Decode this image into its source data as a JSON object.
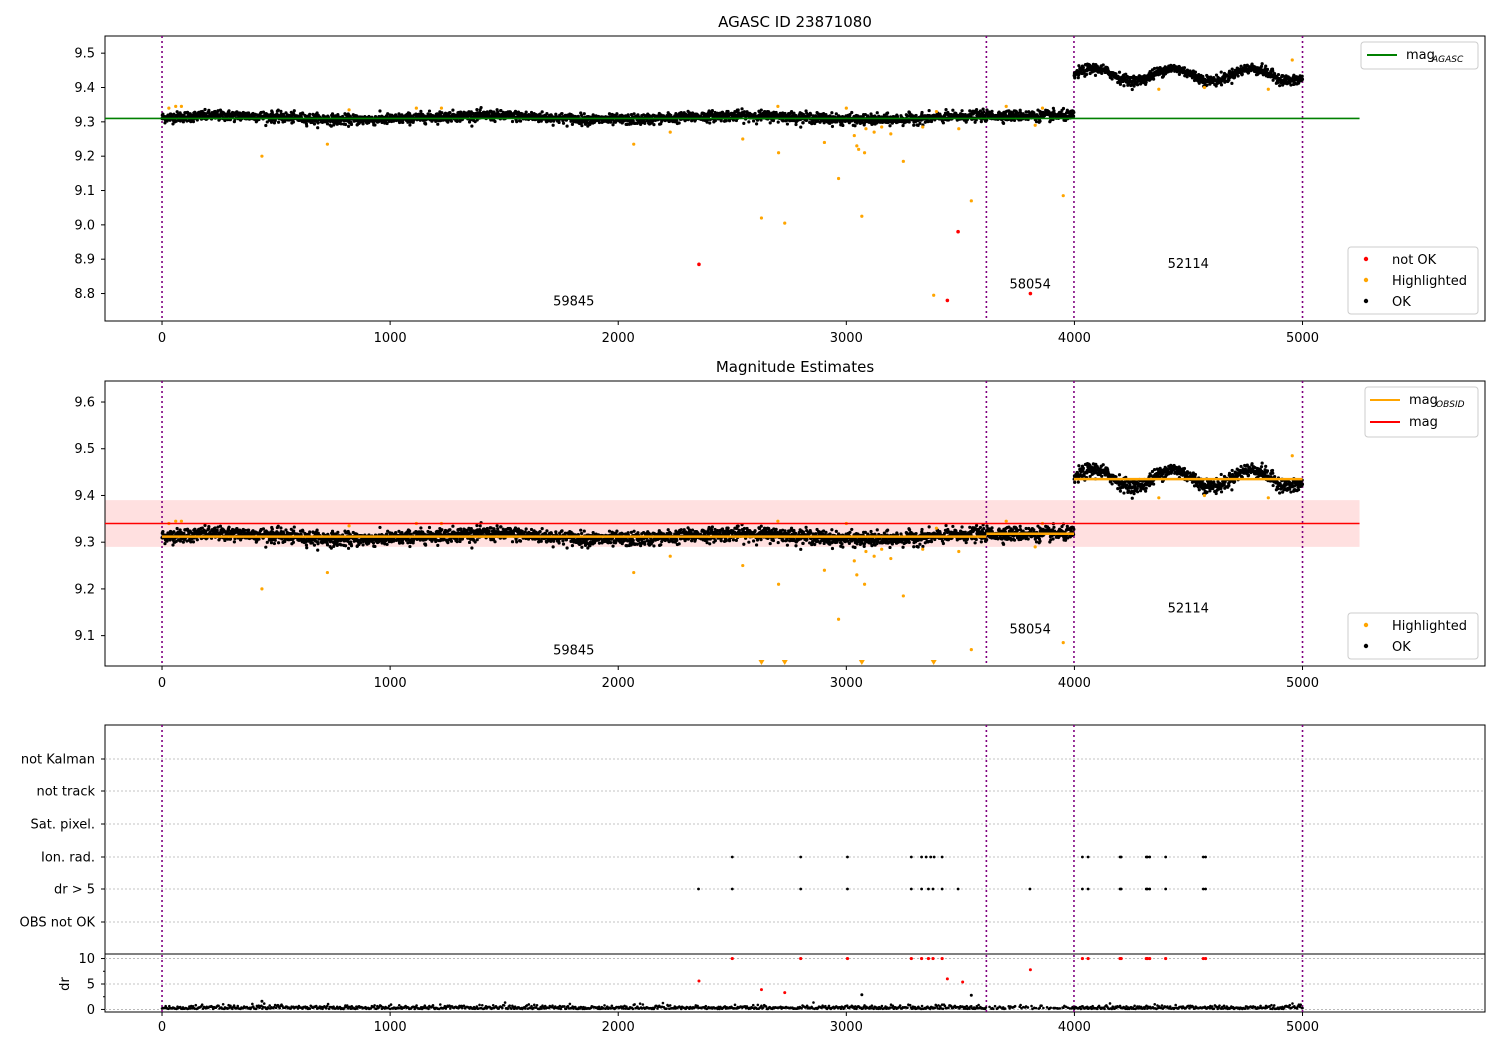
{
  "chart_data": [
    {
      "type": "scatter",
      "title": "AGASC ID 23871080",
      "xlim": [
        -250,
        5800
      ],
      "ylim": [
        8.72,
        9.55
      ],
      "xticks": [
        0,
        1000,
        2000,
        3000,
        4000,
        5000
      ],
      "yticks": [
        8.8,
        8.9,
        9.0,
        9.1,
        9.2,
        9.3,
        9.4,
        9.5
      ],
      "mag_agasc": 9.31,
      "obs_boundaries": [
        0,
        3614,
        3998,
        5000
      ],
      "obs_labels": [
        {
          "text": "59845",
          "x": 1805,
          "y": 8.765
        },
        {
          "text": "58054",
          "x": 3806,
          "y": 8.815
        },
        {
          "text": "52114",
          "x": 4499,
          "y": 8.875
        }
      ],
      "legend_position": "top-right",
      "legend_top": [
        {
          "label": "mag",
          "sub": "AGASC",
          "color": "#008000",
          "kind": "line"
        }
      ],
      "legend_bottom": [
        {
          "label": "not OK",
          "color": "#ff0000",
          "kind": "point"
        },
        {
          "label": "Highlighted",
          "color": "#ffa500",
          "kind": "point"
        },
        {
          "label": "OK",
          "color": "#000000",
          "kind": "point"
        }
      ],
      "highlighted": [
        [
          438,
          9.2
        ],
        [
          725,
          9.235
        ],
        [
          2068,
          9.235
        ],
        [
          2228,
          9.27
        ],
        [
          2546,
          9.25
        ],
        [
          2628,
          9.02
        ],
        [
          2703,
          9.21
        ],
        [
          2730,
          9.005
        ],
        [
          2904,
          9.24
        ],
        [
          2966,
          9.135
        ],
        [
          3035,
          9.26
        ],
        [
          3046,
          9.23
        ],
        [
          3054,
          9.22
        ],
        [
          3068,
          9.025
        ],
        [
          3080,
          9.21
        ],
        [
          3086,
          9.28
        ],
        [
          3122,
          9.27
        ],
        [
          3155,
          9.285
        ],
        [
          3195,
          9.265
        ],
        [
          3250,
          9.185
        ],
        [
          3335,
          9.285
        ],
        [
          3383,
          8.795
        ],
        [
          3493,
          9.28
        ],
        [
          3548,
          9.07
        ],
        [
          3951,
          9.085
        ],
        [
          3828,
          9.29
        ],
        [
          3701,
          9.345
        ]
      ],
      "not_ok": [
        [
          2354,
          8.885
        ],
        [
          3443,
          8.78
        ],
        [
          3490,
          8.98
        ],
        [
          3807,
          8.8
        ]
      ]
    },
    {
      "type": "scatter",
      "title": "Magnitude Estimates",
      "xlim": [
        -250,
        5800
      ],
      "ylim": [
        9.035,
        9.645
      ],
      "xticks": [
        0,
        1000,
        2000,
        3000,
        4000,
        5000
      ],
      "yticks": [
        9.1,
        9.2,
        9.3,
        9.4,
        9.5,
        9.6
      ],
      "mag": 9.34,
      "mag_band": [
        9.29,
        9.39
      ],
      "mag_obsid": [
        {
          "x0": 0,
          "x1": 3614,
          "y": 9.312
        },
        {
          "x0": 3614,
          "x1": 3998,
          "y": 9.318
        },
        {
          "x0": 3998,
          "x1": 5000,
          "y": 9.435
        }
      ],
      "obs_labels": [
        {
          "text": "59845",
          "x": 1805,
          "y": 9.06
        },
        {
          "text": "58054",
          "x": 3806,
          "y": 9.105
        },
        {
          "text": "52114",
          "x": 4499,
          "y": 9.15
        }
      ],
      "legend_position": "top-right",
      "legend_top": [
        {
          "label": "mag",
          "sub": "OBSID",
          "color": "#ffa500",
          "kind": "line"
        },
        {
          "label": "mag",
          "color": "#ff0000",
          "kind": "line"
        }
      ],
      "legend_bottom": [
        {
          "label": "Highlighted",
          "color": "#ffa500",
          "kind": "point"
        },
        {
          "label": "OK",
          "color": "#000000",
          "kind": "point"
        }
      ],
      "highlighted": [
        [
          438,
          9.2
        ],
        [
          725,
          9.235
        ],
        [
          2068,
          9.235
        ],
        [
          2228,
          9.27
        ],
        [
          2546,
          9.25
        ],
        [
          2703,
          9.21
        ],
        [
          2904,
          9.24
        ],
        [
          2966,
          9.135
        ],
        [
          3035,
          9.26
        ],
        [
          3046,
          9.23
        ],
        [
          3080,
          9.21
        ],
        [
          3086,
          9.28
        ],
        [
          3122,
          9.27
        ],
        [
          3155,
          9.285
        ],
        [
          3195,
          9.265
        ],
        [
          3250,
          9.185
        ],
        [
          3335,
          9.285
        ],
        [
          3493,
          9.28
        ],
        [
          3548,
          9.07
        ],
        [
          3951,
          9.085
        ],
        [
          3828,
          9.29
        ],
        [
          3701,
          9.345
        ]
      ],
      "below_range": [
        2628,
        2730,
        3068,
        3383
      ]
    },
    {
      "type": "scatter",
      "categories": [
        "not Kalman",
        "not track",
        "Sat. pixel.",
        "Ion. rad.",
        "dr > 5",
        "OBS not OK"
      ],
      "xlim": [
        -250,
        5800
      ],
      "xticks": [
        0,
        1000,
        2000,
        3000,
        4000,
        5000
      ],
      "flag_points": {
        "Ion. rad.": [
          2500,
          2800,
          3005,
          3285,
          3330,
          3350,
          3370,
          3385,
          3420,
          4035,
          4060,
          4200,
          4205,
          4315,
          4320,
          4330,
          4400,
          4565,
          4575
        ],
        "dr > 5": [
          2352,
          2500,
          2800,
          3005,
          3285,
          3330,
          3360,
          3380,
          3420,
          3490,
          3805,
          4035,
          4060,
          4200,
          4205,
          4315,
          4320,
          4330,
          4400,
          4565,
          4575
        ]
      },
      "dr_panel": {
        "ylabel": "dr",
        "ylim": [
          -0.5,
          10.5
        ],
        "yticks": [
          0,
          5,
          10
        ],
        "clip_value": 10,
        "points": [
          [
            2354,
            5.6
          ],
          [
            2628,
            3.9
          ],
          [
            2730,
            3.3
          ],
          [
            3068,
            2.9
          ],
          [
            3443,
            6.0
          ],
          [
            3510,
            5.4
          ],
          [
            3807,
            7.8
          ],
          [
            3548,
            2.8
          ],
          [
            438,
            1.6
          ]
        ]
      }
    }
  ]
}
